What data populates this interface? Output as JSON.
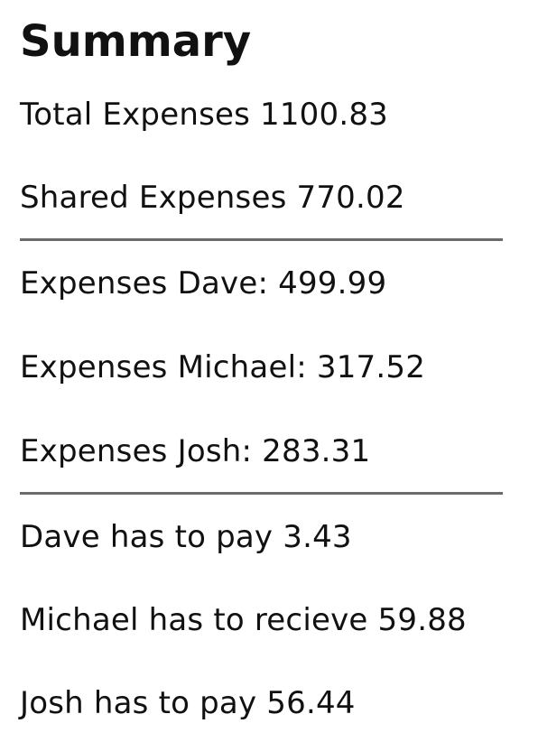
{
  "summary": {
    "title": "Summary",
    "totals": [
      "Total Expenses 1100.83",
      "Shared Expenses 770.02"
    ],
    "expenses": [
      "Expenses Dave: 499.99",
      "Expenses Michael: 317.52",
      "Expenses Josh: 283.31"
    ],
    "settlements": [
      "Dave has to pay 3.43",
      "Michael has to recieve 59.88",
      "Josh has to pay 56.44"
    ]
  }
}
